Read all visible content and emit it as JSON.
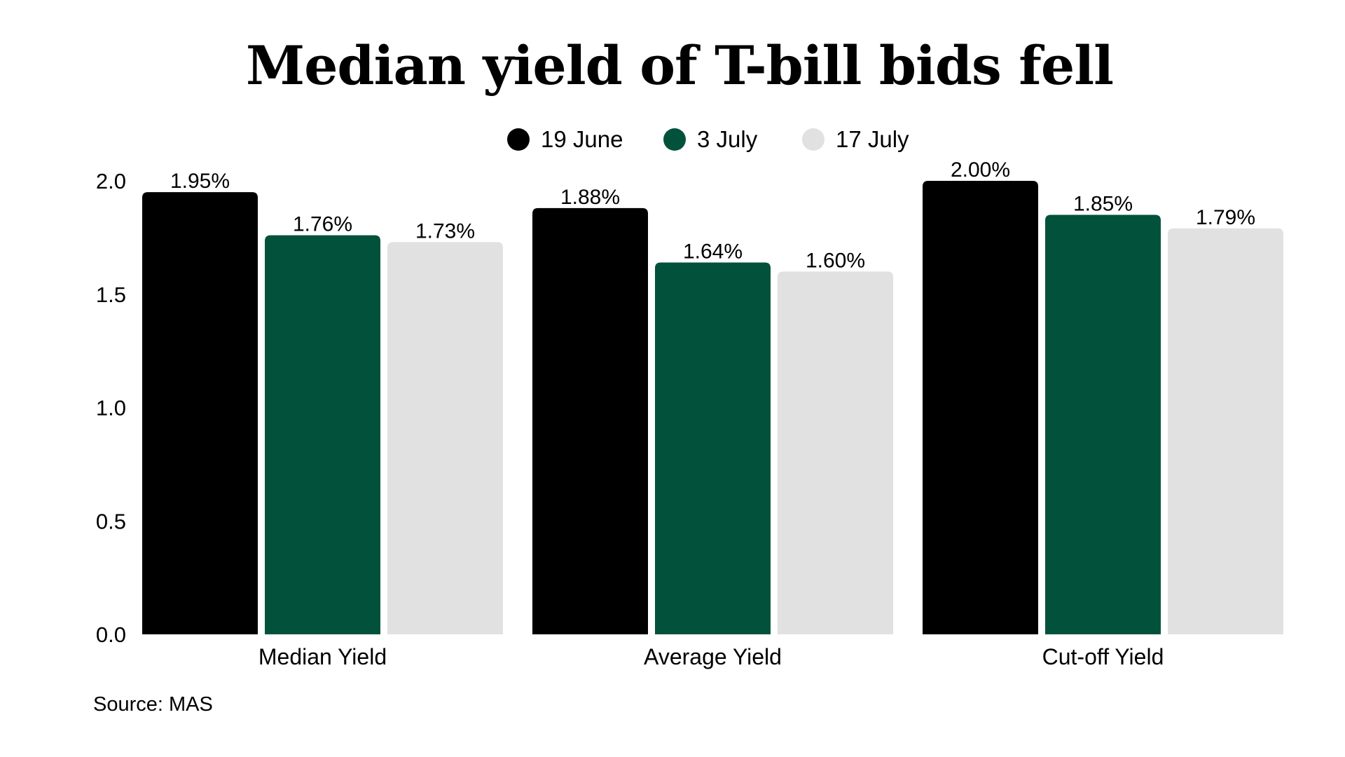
{
  "chart_data": {
    "type": "bar",
    "title": "Median yield of T-bill bids fell",
    "categories": [
      "Median Yield",
      "Average Yield",
      "Cut-off Yield"
    ],
    "series": [
      {
        "name": "19 June",
        "color": "#000000",
        "values": [
          1.95,
          1.88,
          2.0
        ],
        "labels": [
          "1.95%",
          "1.88%",
          "2.00%"
        ]
      },
      {
        "name": "3 July",
        "color": "#02523B",
        "values": [
          1.76,
          1.64,
          1.85
        ],
        "labels": [
          "1.76%",
          "1.64%",
          "1.85%"
        ]
      },
      {
        "name": "17 July",
        "color": "#E1E1E1",
        "values": [
          1.73,
          1.6,
          1.79
        ],
        "labels": [
          "1.73%",
          "1.60%",
          "1.79%"
        ]
      }
    ],
    "ylim": [
      0,
      2.0
    ],
    "yticks": [
      "0.0",
      "0.5",
      "1.0",
      "1.5",
      "2.0"
    ],
    "ytick_values": [
      0,
      0.5,
      1.0,
      1.5,
      2.0
    ],
    "xlabel": "",
    "ylabel": "",
    "grid": false,
    "legend_position": "top-center",
    "source": "Source: MAS"
  }
}
